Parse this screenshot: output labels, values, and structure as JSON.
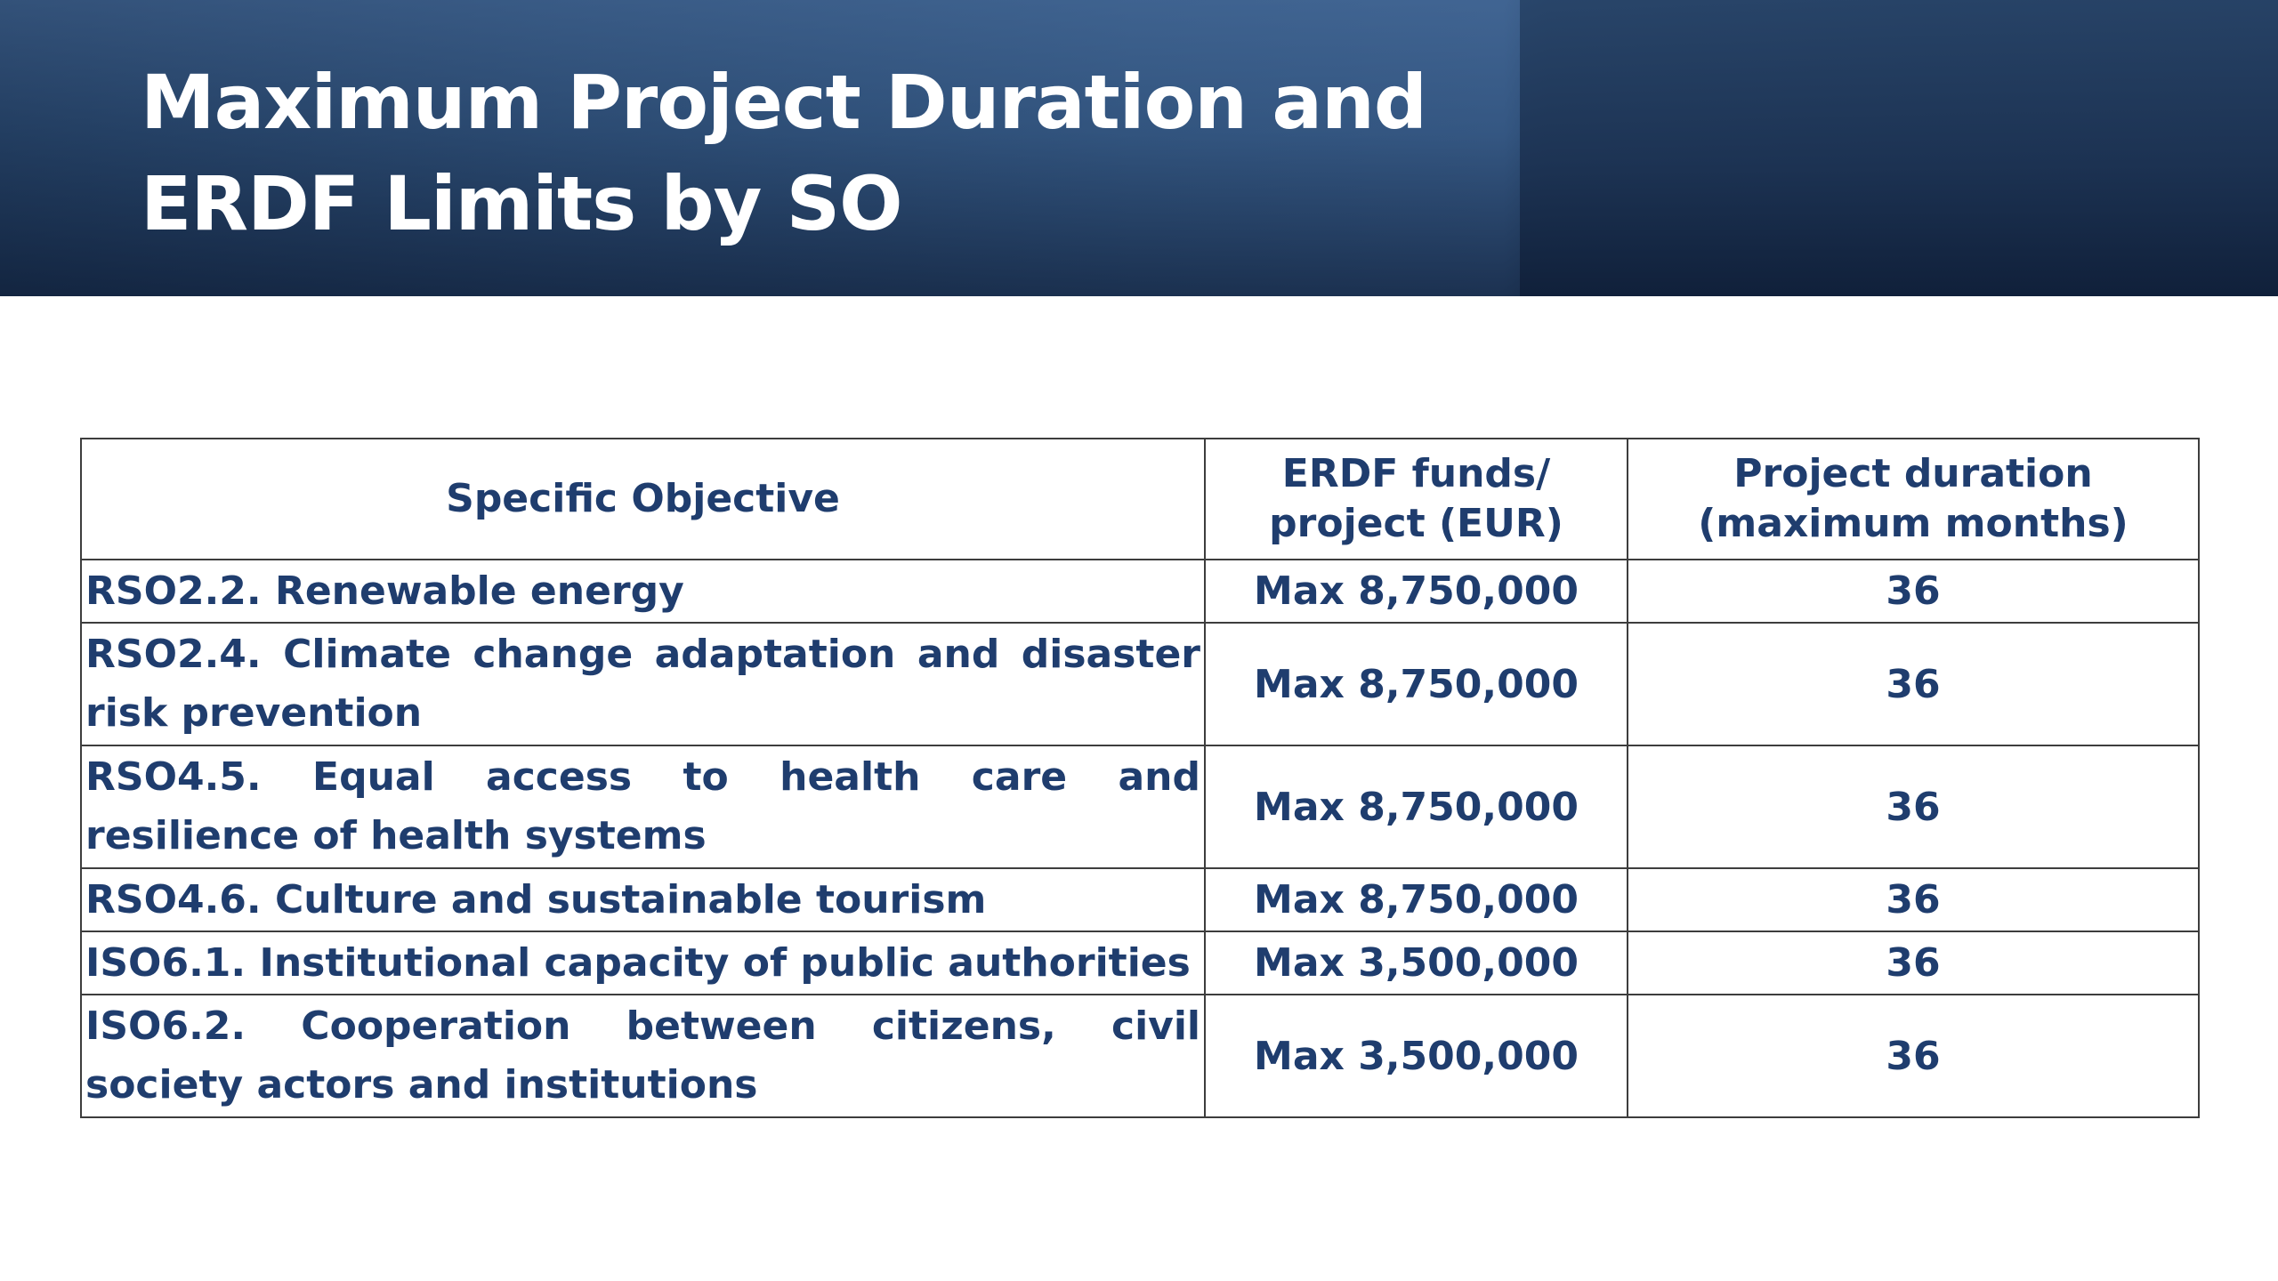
{
  "header": {
    "title_line1": "Maximum Project Duration and",
    "title_line2": "ERDF Limits by SO"
  },
  "table": {
    "headers": {
      "col1": "Specific Objective",
      "col2_line1": "ERDF funds/",
      "col2_line2": "project (EUR)",
      "col3_line1": "Project duration",
      "col3_line2": "(maximum months)"
    },
    "rows": [
      {
        "objective": "RSO2.2. Renewable energy",
        "funds": "Max 8,750,000",
        "duration": "36"
      },
      {
        "objective": "RSO2.4. Climate change adaptation and disaster risk prevention",
        "funds": "Max 8,750,000",
        "duration": "36"
      },
      {
        "objective": "RSO4.5. Equal access to health care and resilience of health systems",
        "funds": "Max 8,750,000",
        "duration": "36"
      },
      {
        "objective": "RSO4.6. Culture and sustainable tourism",
        "funds": "Max 8,750,000",
        "duration": "36"
      },
      {
        "objective": "ISO6.1. Institutional capacity of public authorities",
        "funds": "Max 3,500,000",
        "duration": "36"
      },
      {
        "objective": "ISO6.2. Cooperation between citizens, civil society actors and institutions",
        "funds": "Max 3,500,000",
        "duration": "36"
      }
    ]
  }
}
